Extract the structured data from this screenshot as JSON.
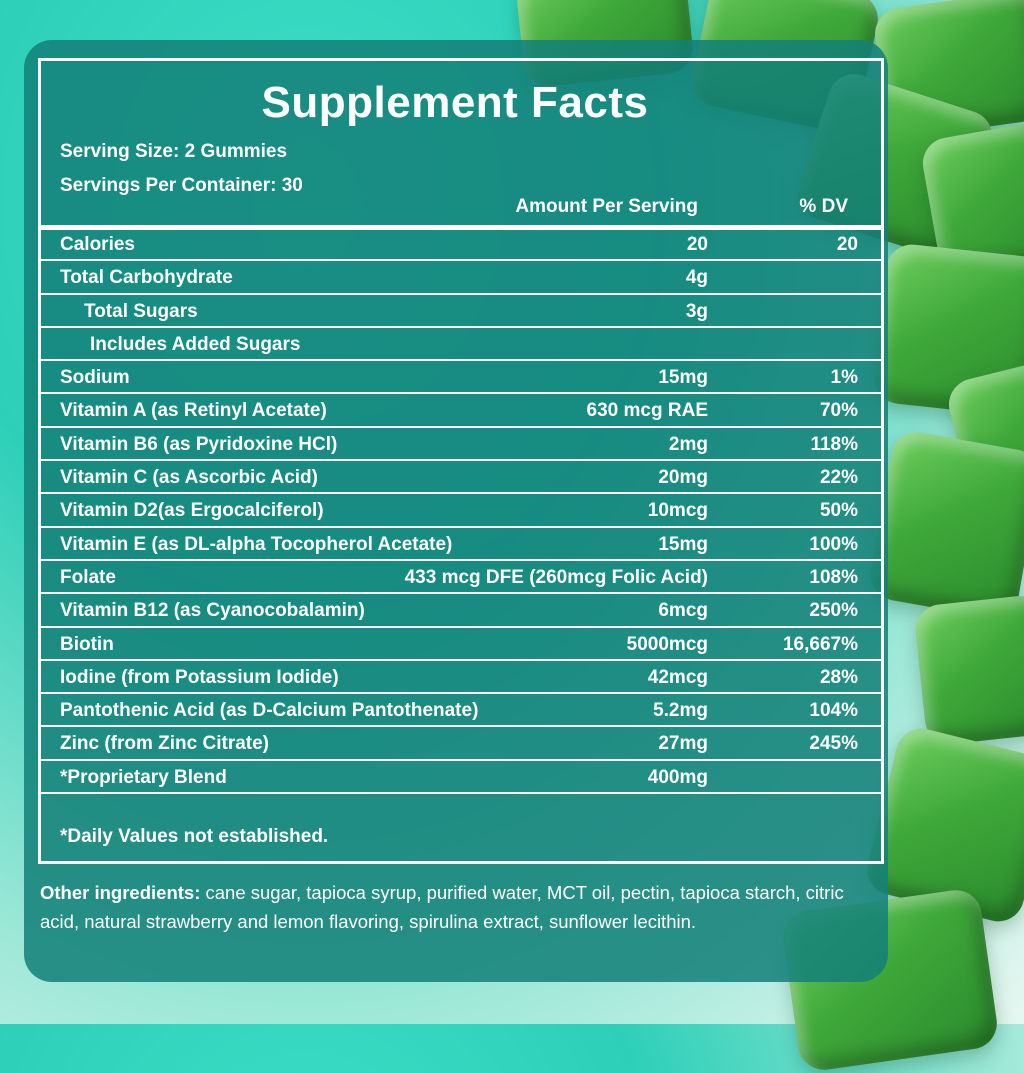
{
  "panel": {
    "title": "Supplement Facts",
    "serving_size": "Serving Size: 2 Gummies",
    "servings_per_container": "Servings Per Container: 30",
    "header_amount": "Amount Per Serving",
    "header_dv": "% DV",
    "rows": [
      {
        "name": "Calories",
        "amount": "20",
        "dv": "20"
      },
      {
        "name": "Total Carbohydrate",
        "amount": "4g",
        "dv": ""
      },
      {
        "name": "Total Sugars",
        "amount": "3g",
        "dv": "",
        "indent": 1
      },
      {
        "name": "Includes Added Sugars",
        "amount": "",
        "dv": "",
        "indent": 2
      },
      {
        "name": "Sodium",
        "amount": "15mg",
        "dv": "1%"
      },
      {
        "name": "Vitamin A (as Retinyl Acetate)",
        "amount": "630 mcg RAE",
        "dv": "70%"
      },
      {
        "name": "Vitamin B6 (as Pyridoxine HCl)",
        "amount": "2mg",
        "dv": "118%"
      },
      {
        "name": "Vitamin C (as Ascorbic Acid)",
        "amount": "20mg",
        "dv": "22%"
      },
      {
        "name": "Vitamin D2(as Ergocalciferol)",
        "amount": "10mcg",
        "dv": "50%"
      },
      {
        "name": "Vitamin E (as DL-alpha Tocopherol Acetate)",
        "amount": "15mg",
        "dv": "100%"
      },
      {
        "name": "Folate",
        "amount": "433 mcg DFE (260mcg Folic Acid)",
        "dv": "108%"
      },
      {
        "name": "Vitamin B12 (as Cyanocobalamin)",
        "amount": "6mcg",
        "dv": "250%"
      },
      {
        "name": "Biotin",
        "amount": "5000mcg",
        "dv": "16,667%"
      },
      {
        "name": "Iodine (from Potassium Iodide)",
        "amount": "42mcg",
        "dv": "28%"
      },
      {
        "name": "Pantothenic Acid (as D-Calcium Pantothenate)",
        "amount": "5.2mg",
        "dv": "104%"
      },
      {
        "name": "Zinc (from Zinc Citrate)",
        "amount": "27mg",
        "dv": "245%"
      },
      {
        "name": "*Proprietary Blend",
        "amount": "400mg",
        "dv": ""
      }
    ],
    "footnote": "*Daily Values not established.",
    "other_ingredients_label": "Other ingredients:",
    "other_ingredients_text": " cane sugar, tapioca syrup, purified water, MCT oil, pectin, tapioca starch, citric acid, natural strawberry and lemon flavoring, spirulina extract, sunflower lecithin."
  },
  "colors": {
    "panel_bg": "#148078",
    "text": "#ffffff",
    "gummy": "#3fa83a"
  }
}
